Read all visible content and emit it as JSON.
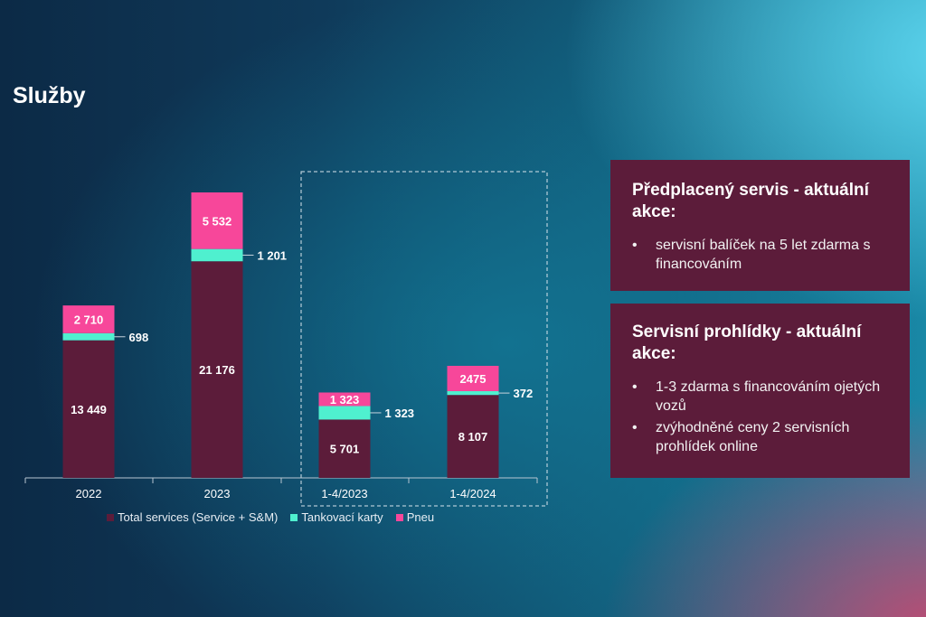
{
  "slide": {
    "title": "Služby"
  },
  "chart_data": {
    "type": "bar",
    "stacked": true,
    "categories": [
      "2022",
      "2023",
      "1-4/2023",
      "1-4/2024"
    ],
    "series": [
      {
        "name": "Total services (Service + S&M)",
        "color": "#5c1c3a",
        "values": [
          13449,
          21176,
          5701,
          8107
        ],
        "labels": [
          "13 449",
          "21 176",
          "5 701",
          "8 107"
        ]
      },
      {
        "name": "Tankovací karty",
        "color": "#4ff0cf",
        "values": [
          698,
          1201,
          1323,
          372
        ],
        "labels": [
          "698",
          "1 201",
          "1 323",
          "372"
        ]
      },
      {
        "name": "Pneu",
        "color": "#f7479a",
        "values": [
          2710,
          5532,
          1323,
          2475
        ],
        "labels": [
          "2 710",
          "5 532",
          "1 323",
          "2475"
        ]
      }
    ],
    "highlight_group": [
      "1-4/2023",
      "1-4/2024"
    ],
    "legend_position": "bottom"
  },
  "boxes": [
    {
      "title": "Předplacený servis - aktuální akce:",
      "items": [
        "servisní balíček na 5 let zdarma s financováním"
      ]
    },
    {
      "title": "Servisní prohlídky - aktuální akce:",
      "items": [
        "1-3 zdarma s financováním ojetých vozů",
        "zvýhodněné ceny 2 servisních prohlídek online"
      ]
    }
  ]
}
